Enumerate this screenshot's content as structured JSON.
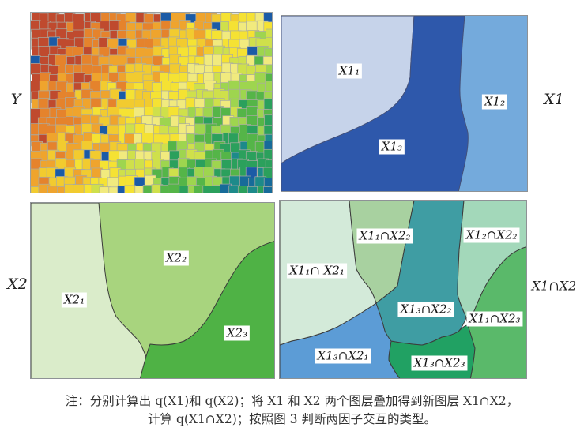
{
  "caption": {
    "line1": "注：分别计算出 q(X1)和 q(X2)；将 X1 和 X2 两个图层叠加得到新图层 X1∩X2，",
    "line2": "计算 q(X1∩X2)；按照图 3 判断两因子交互的类型。"
  },
  "panels": {
    "y": {
      "side_label": "Y",
      "grid": {
        "cols": 28,
        "rows": 21,
        "seed": 7
      },
      "palette": {
        "dark_red": "#bf4a2e",
        "orange": "#e5832c",
        "light_orange": "#efa42d",
        "yellow_orange": "#f2cb2f",
        "yellow": "#f5e233",
        "pale_yellow": "#f1ea7e",
        "yellow_green": "#cfe04b",
        "light_green": "#9ed54f",
        "green": "#55b548",
        "emerald": "#2ba05c",
        "teal": "#1d8a8a",
        "dark_teal": "#176b99",
        "accent_blue": "#1b5ba6",
        "cell_border": "#a9aba2"
      }
    },
    "x1": {
      "side_label": "X1",
      "zones": [
        {
          "label": "X1₁",
          "color": "#c6d3ea"
        },
        {
          "label": "X1₂",
          "color": "#74aadc"
        },
        {
          "label": "X1₃",
          "color": "#2e58ab"
        }
      ],
      "boundary_color": "#44517a"
    },
    "x2": {
      "side_label": "X2",
      "zones": [
        {
          "label": "X2₁",
          "color": "#daecca"
        },
        {
          "label": "X2₂",
          "color": "#a8d47e"
        },
        {
          "label": "X2₃",
          "color": "#4fb245"
        }
      ],
      "boundary_color": "#3a3a3a"
    },
    "x1x2": {
      "side_label": "X1∩X2",
      "zones": [
        {
          "label": "X1₁∩ X2₁",
          "color": "#d3ead9"
        },
        {
          "label": "X1₁∩X2₂",
          "color": "#a8d1a0"
        },
        {
          "label": "X1₂∩X2₂",
          "color": "#a3d8ba"
        },
        {
          "label": "X1₃∩X2₂",
          "color": "#3f9da3"
        },
        {
          "label": "X1₁∩X2₃",
          "color": "#5ab96a"
        },
        {
          "label": "X1₃∩X2₁",
          "color": "#5c9cd6"
        },
        {
          "label": "X1₃∩X2₃",
          "color": "#21a163"
        }
      ],
      "boundary_color": "#3c3c3c"
    }
  }
}
